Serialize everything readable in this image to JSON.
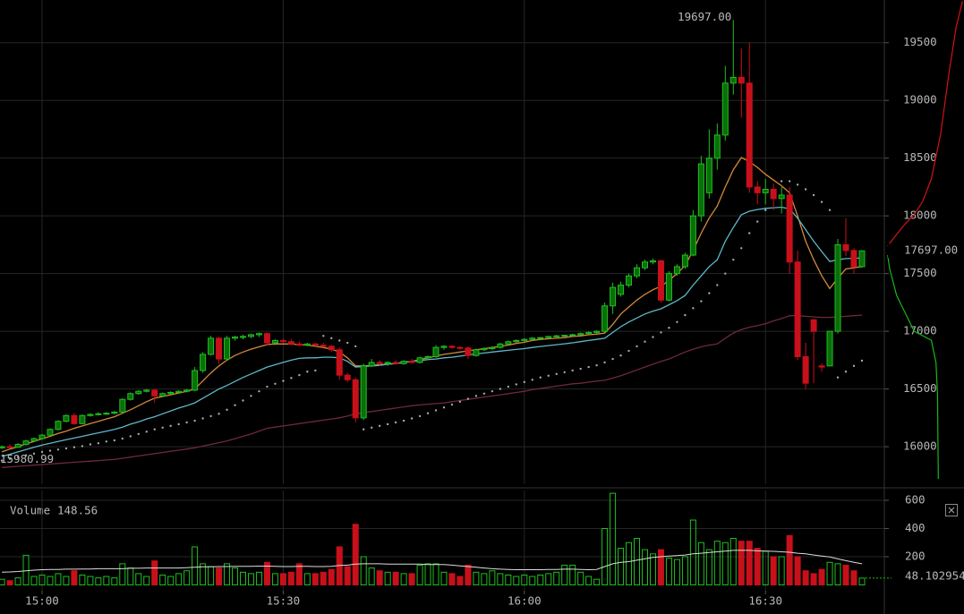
{
  "chart_data": {
    "type": "candlestick",
    "x": [
      "14:55",
      "14:56",
      "14:57",
      "14:58",
      "14:59",
      "15:00",
      "15:01",
      "15:02",
      "15:03",
      "15:04",
      "15:05",
      "15:06",
      "15:07",
      "15:08",
      "15:09",
      "15:10",
      "15:11",
      "15:12",
      "15:13",
      "15:14",
      "15:15",
      "15:16",
      "15:17",
      "15:18",
      "15:19",
      "15:20",
      "15:21",
      "15:22",
      "15:23",
      "15:24",
      "15:25",
      "15:26",
      "15:27",
      "15:28",
      "15:29",
      "15:30",
      "15:31",
      "15:32",
      "15:33",
      "15:34",
      "15:35",
      "15:36",
      "15:37",
      "15:38",
      "15:39",
      "15:40",
      "15:41",
      "15:42",
      "15:43",
      "15:44",
      "15:45",
      "15:46",
      "15:47",
      "15:48",
      "15:49",
      "15:50",
      "15:51",
      "15:52",
      "15:53",
      "15:54",
      "15:55",
      "15:56",
      "15:57",
      "15:58",
      "15:59",
      "16:00",
      "16:01",
      "16:02",
      "16:03",
      "16:04",
      "16:05",
      "16:06",
      "16:07",
      "16:08",
      "16:09",
      "16:10",
      "16:11",
      "16:12",
      "16:13",
      "16:14",
      "16:15",
      "16:16",
      "16:17",
      "16:18",
      "16:19",
      "16:20",
      "16:21",
      "16:22",
      "16:23",
      "16:24",
      "16:25",
      "16:26",
      "16:27",
      "16:28",
      "16:29",
      "16:30",
      "16:31",
      "16:32",
      "16:33",
      "16:34",
      "16:35",
      "16:36",
      "16:37",
      "16:38",
      "16:39",
      "16:40",
      "16:41",
      "16:42"
    ],
    "open": [
      15990,
      16000,
      15995,
      16020,
      16050,
      16070,
      16100,
      16150,
      16220,
      16270,
      16200,
      16270,
      16280,
      16285,
      16290,
      16300,
      16410,
      16460,
      16480,
      16490,
      16440,
      16460,
      16470,
      16480,
      16490,
      16660,
      16800,
      16940,
      16760,
      16940,
      16950,
      16955,
      16970,
      16980,
      16900,
      16920,
      16910,
      16890,
      16880,
      16890,
      16880,
      16870,
      16840,
      16620,
      16580,
      16250,
      16700,
      16730,
      16720,
      16730,
      16720,
      16740,
      16730,
      16770,
      16780,
      16860,
      16870,
      16860,
      16855,
      16790,
      16840,
      16850,
      16860,
      16890,
      16910,
      16920,
      16930,
      16940,
      16945,
      16955,
      16960,
      16965,
      16970,
      16980,
      16990,
      17000,
      17220,
      17320,
      17400,
      17480,
      17550,
      17600,
      17610,
      17270,
      17500,
      17560,
      17660,
      18000,
      18200,
      18500,
      18700,
      19150,
      19200,
      19150,
      18250,
      18200,
      18230,
      18150,
      18180,
      17600,
      16780,
      17100,
      16700,
      16700,
      17000,
      17750,
      17700,
      17560
    ],
    "high": [
      16010,
      16020,
      16030,
      16060,
      16080,
      16110,
      16160,
      16230,
      16280,
      16290,
      16280,
      16290,
      16300,
      16300,
      16310,
      16420,
      16470,
      16490,
      16500,
      16500,
      16470,
      16480,
      16490,
      16500,
      16690,
      16820,
      16960,
      16950,
      16960,
      16960,
      16970,
      16980,
      16990,
      16990,
      16930,
      16940,
      16930,
      16910,
      16900,
      16900,
      16900,
      16880,
      16860,
      16640,
      16600,
      16720,
      16760,
      16750,
      16740,
      16750,
      16750,
      16760,
      16780,
      16790,
      16880,
      16880,
      16880,
      16870,
      16870,
      16850,
      16860,
      16870,
      16900,
      16920,
      16930,
      16940,
      16950,
      16950,
      16960,
      16970,
      16970,
      16980,
      16990,
      17000,
      17010,
      17250,
      17420,
      17430,
      17500,
      17580,
      17620,
      17630,
      17620,
      17520,
      17580,
      17680,
      18050,
      18520,
      18750,
      18800,
      19300,
      19697,
      19450,
      19500,
      18300,
      18320,
      18280,
      18250,
      18250,
      17700,
      16900,
      17100,
      16720,
      17000,
      17800,
      17980,
      17720,
      17700
    ],
    "low": [
      15980.99,
      15985,
      15990,
      16010,
      16040,
      16060,
      16090,
      16140,
      16210,
      16190,
      16195,
      16260,
      16270,
      16275,
      16280,
      16295,
      16400,
      16450,
      16470,
      16380,
      16430,
      16450,
      16460,
      16470,
      16480,
      16640,
      16790,
      16720,
      16750,
      16920,
      16930,
      16940,
      16950,
      16880,
      16880,
      16900,
      16880,
      16870,
      16870,
      16870,
      16860,
      16820,
      16580,
      16560,
      16210,
      16230,
      16690,
      16700,
      16700,
      16710,
      16710,
      16720,
      16720,
      16750,
      16770,
      16840,
      16850,
      16840,
      16760,
      16780,
      16830,
      16840,
      16850,
      16880,
      16900,
      16910,
      16920,
      16930,
      16935,
      16945,
      16950,
      16955,
      16960,
      16970,
      16980,
      16990,
      17150,
      17300,
      17380,
      17460,
      17530,
      17580,
      17250,
      17260,
      17480,
      17540,
      17650,
      17950,
      18150,
      18400,
      18650,
      19050,
      18850,
      18200,
      18100,
      18100,
      18050,
      18020,
      17500,
      16750,
      16500,
      16550,
      16650,
      16700,
      16980,
      17650,
      17500,
      17550
    ],
    "close": [
      16000,
      15995,
      16020,
      16050,
      16070,
      16100,
      16150,
      16220,
      16270,
      16200,
      16270,
      16280,
      16285,
      16290,
      16300,
      16410,
      16460,
      16480,
      16490,
      16440,
      16460,
      16470,
      16480,
      16490,
      16660,
      16800,
      16940,
      16760,
      16940,
      16950,
      16955,
      16970,
      16980,
      16900,
      16920,
      16910,
      16890,
      16880,
      16890,
      16880,
      16870,
      16840,
      16620,
      16580,
      16250,
      16700,
      16730,
      16720,
      16730,
      16720,
      16740,
      16730,
      16770,
      16780,
      16860,
      16870,
      16860,
      16855,
      16790,
      16840,
      16850,
      16860,
      16890,
      16910,
      16920,
      16930,
      16940,
      16945,
      16955,
      16960,
      16965,
      16970,
      16980,
      16990,
      17000,
      17220,
      17380,
      17400,
      17480,
      17550,
      17600,
      17610,
      17270,
      17500,
      17560,
      17660,
      18000,
      18450,
      18500,
      18700,
      19150,
      19200,
      19150,
      18250,
      18200,
      18230,
      18150,
      18180,
      17600,
      16780,
      16550,
      17000,
      16690,
      17000,
      17750,
      17700,
      17560,
      17697
    ],
    "up_color": "#1fbf1f",
    "down_color": "#c8101a",
    "ylim": [
      15675,
      19870
    ],
    "yticks": [
      16000,
      16500,
      17000,
      17500,
      18000,
      18500,
      19000,
      19500
    ],
    "xticks": [
      "15:00",
      "15:30",
      "16:00",
      "16:30"
    ],
    "grid": true,
    "max_price": {
      "value": 19697,
      "label": "19697.00"
    },
    "min_price": {
      "value": 15980.99,
      "label": "15980.99"
    },
    "last_price": {
      "value": 17697,
      "label": "17697.00"
    },
    "series": [
      {
        "color": "#d4893a",
        "values": [
          15955,
          15980,
          16000,
          16025,
          16045,
          16070,
          16090,
          16115,
          16135,
          16160,
          16180,
          16200,
          16220,
          16240,
          16260,
          16290,
          16320,
          16355,
          16390,
          16420,
          16435,
          16450,
          16465,
          16480,
          16500,
          16570,
          16640,
          16700,
          16750,
          16790,
          16820,
          16845,
          16865,
          16885,
          16890,
          16890,
          16890,
          16885,
          16880,
          16870,
          16860,
          16845,
          16820,
          16770,
          16700,
          16700,
          16705,
          16710,
          16715,
          16720,
          16730,
          16740,
          16755,
          16770,
          16785,
          16800,
          16810,
          16820,
          16830,
          16840,
          16850,
          16860,
          16870,
          16880,
          16895,
          16905,
          16920,
          16930,
          16935,
          16940,
          16945,
          16955,
          16960,
          16970,
          16975,
          16985,
          17060,
          17150,
          17210,
          17270,
          17320,
          17360,
          17390,
          17440,
          17500,
          17570,
          17700,
          17850,
          17980,
          18085,
          18250,
          18400,
          18505,
          18470,
          18420,
          18360,
          18310,
          18260,
          18200,
          18000,
          17780,
          17620,
          17480,
          17370,
          17460,
          17540,
          17550,
          17560
        ]
      },
      {
        "color": "#5db8c8",
        "values": [
          15915,
          15935,
          15955,
          15975,
          15995,
          16015,
          16030,
          16045,
          16060,
          16075,
          16090,
          16105,
          16120,
          16135,
          16150,
          16170,
          16195,
          16215,
          16240,
          16260,
          16285,
          16310,
          16335,
          16355,
          16380,
          16420,
          16460,
          16500,
          16530,
          16565,
          16600,
          16630,
          16660,
          16690,
          16710,
          16730,
          16750,
          16765,
          16770,
          16770,
          16775,
          16775,
          16770,
          16740,
          16690,
          16695,
          16700,
          16705,
          16715,
          16720,
          16730,
          16740,
          16745,
          16755,
          16760,
          16770,
          16775,
          16785,
          16795,
          16805,
          16812,
          16820,
          16828,
          16835,
          16843,
          16850,
          16860,
          16868,
          16876,
          16884,
          16892,
          16900,
          16910,
          16920,
          16930,
          16940,
          16990,
          17040,
          17080,
          17115,
          17150,
          17175,
          17195,
          17230,
          17265,
          17310,
          17400,
          17480,
          17560,
          17620,
          17780,
          17900,
          18010,
          18040,
          18055,
          18065,
          18070,
          18075,
          18060,
          17980,
          17880,
          17780,
          17690,
          17605,
          17620,
          17630,
          17632,
          17635
        ]
      },
      {
        "color": "#6e2a38",
        "values": [
          15820,
          15825,
          15830,
          15835,
          15840,
          15845,
          15850,
          15855,
          15860,
          15865,
          15870,
          15875,
          15880,
          15885,
          15890,
          15900,
          15910,
          15920,
          15930,
          15940,
          15950,
          15960,
          15970,
          15980,
          15990,
          16005,
          16020,
          16035,
          16050,
          16070,
          16090,
          16110,
          16135,
          16160,
          16170,
          16180,
          16190,
          16200,
          16210,
          16220,
          16230,
          16240,
          16250,
          16265,
          16285,
          16295,
          16305,
          16315,
          16325,
          16335,
          16345,
          16355,
          16362,
          16368,
          16374,
          16380,
          16390,
          16400,
          16410,
          16420,
          16430,
          16440,
          16450,
          16460,
          16470,
          16480,
          16495,
          16505,
          16515,
          16525,
          16535,
          16545,
          16550,
          16560,
          16568,
          16575,
          16595,
          16615,
          16640,
          16665,
          16690,
          16715,
          16740,
          16760,
          16790,
          16820,
          16845,
          16865,
          16880,
          16890,
          16940,
          16985,
          17015,
          17035,
          17050,
          17065,
          17090,
          17110,
          17135,
          17135,
          17130,
          17125,
          17120,
          17120,
          17125,
          17130,
          17135,
          17140
        ]
      }
    ],
    "sar": {
      "color": "#a8a8a8",
      "values": [
        15880,
        15895,
        15910,
        15925,
        15940,
        15955,
        15965,
        15975,
        15985,
        15995,
        16005,
        16020,
        16030,
        16045,
        16055,
        16070,
        16090,
        16110,
        16130,
        16150,
        16165,
        16180,
        16195,
        16210,
        16225,
        16245,
        16265,
        16285,
        16320,
        16360,
        16400,
        16440,
        16480,
        16520,
        16545,
        16570,
        16595,
        16620,
        16650,
        16660,
        16960,
        16940,
        16920,
        16900,
        16870,
        16150,
        16165,
        16180,
        16195,
        16210,
        16225,
        16245,
        16265,
        16290,
        16315,
        16340,
        16365,
        16390,
        16415,
        16440,
        16460,
        16480,
        16500,
        16520,
        16540,
        16560,
        16580,
        16600,
        16615,
        16630,
        16645,
        16660,
        16675,
        16690,
        16705,
        16730,
        16760,
        16790,
        16830,
        16870,
        16910,
        16950,
        16990,
        17030,
        17080,
        17140,
        17200,
        17260,
        17330,
        17400,
        17500,
        17620,
        17720,
        17850,
        17950,
        18050,
        18180,
        18300,
        18300,
        18270,
        18230,
        18180,
        18120,
        18050,
        16600,
        16650,
        16700,
        16745
      ]
    },
    "volume": {
      "title": "Volume",
      "current": 148.56,
      "ylim": [
        0,
        657
      ],
      "yticks": [
        200,
        400,
        600
      ],
      "values": [
        40,
        30,
        50,
        210,
        60,
        70,
        60,
        80,
        60,
        100,
        70,
        60,
        50,
        60,
        50,
        150,
        120,
        80,
        60,
        170,
        70,
        60,
        80,
        100,
        270,
        150,
        130,
        120,
        150,
        120,
        90,
        80,
        90,
        160,
        80,
        80,
        90,
        150,
        80,
        80,
        90,
        110,
        270,
        130,
        430,
        200,
        120,
        100,
        90,
        90,
        80,
        80,
        140,
        150,
        150,
        90,
        80,
        60,
        140,
        90,
        80,
        100,
        80,
        70,
        60,
        70,
        60,
        70,
        80,
        90,
        140,
        140,
        90,
        60,
        40,
        400,
        650,
        260,
        300,
        330,
        250,
        220,
        250,
        190,
        180,
        200,
        460,
        300,
        250,
        310,
        300,
        330,
        310,
        310,
        260,
        240,
        200,
        200,
        350,
        200,
        100,
        80,
        110,
        160,
        150,
        140,
        100,
        48.102954
      ],
      "ma": {
        "color": "#dcdcdc",
        "values": [
          90,
          92,
          95,
          100,
          105,
          108,
          110,
          110,
          112,
          112,
          113,
          113,
          115,
          115,
          115,
          115,
          118,
          118,
          120,
          120,
          120,
          120,
          120,
          122,
          125,
          128,
          128,
          130,
          130,
          132,
          132,
          132,
          133,
          133,
          132,
          130,
          130,
          132,
          132,
          130,
          130,
          132,
          138,
          140,
          148,
          150,
          150,
          150,
          148,
          148,
          148,
          148,
          148,
          145,
          145,
          145,
          140,
          135,
          130,
          125,
          120,
          115,
          112,
          110,
          108,
          108,
          108,
          108,
          110,
          110,
          112,
          112,
          110,
          108,
          110,
          130,
          150,
          160,
          165,
          175,
          185,
          195,
          200,
          205,
          208,
          212,
          220,
          225,
          230,
          235,
          240,
          245,
          245,
          245,
          242,
          240,
          238,
          235,
          232,
          225,
          220,
          212,
          205,
          198,
          185,
          172,
          160,
          150
        ]
      }
    },
    "depth": {
      "xlim": [
        0,
        100
      ],
      "asks": {
        "color": "#d01414",
        "prices": [
          17738,
          17839,
          17932,
          18009,
          18126,
          18320,
          18707,
          19251,
          19638,
          19860
        ],
        "amounts": [
          2,
          13.5,
          24.7,
          36,
          47,
          58,
          70,
          81,
          90,
          98
        ]
      },
      "bids": {
        "color": "#16b816",
        "prices": [
          17660,
          17544,
          17311,
          17156,
          17001,
          16923,
          16729,
          16458,
          15721
        ],
        "amounts": [
          2,
          4.5,
          13.5,
          24.7,
          36,
          58,
          64,
          66,
          67
        ]
      }
    }
  }
}
